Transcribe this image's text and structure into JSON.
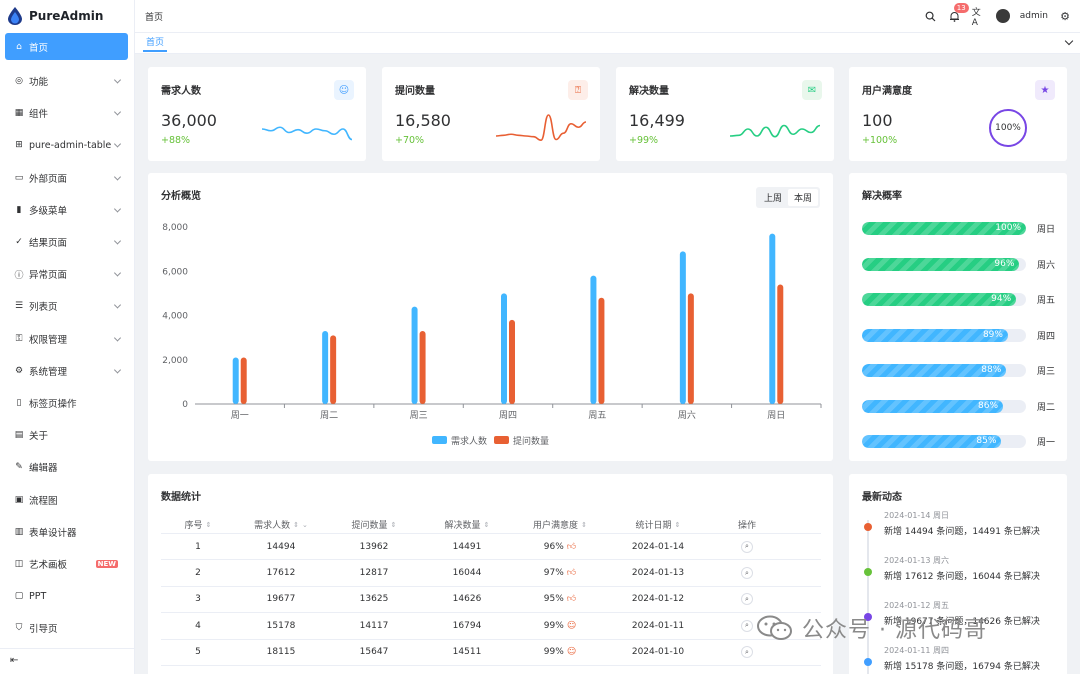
{
  "app": {
    "name": "PureAdmin"
  },
  "sidebar": {
    "items": [
      {
        "label": "首页",
        "icon": "home-icon",
        "glyph": "⌂",
        "active": true
      },
      {
        "label": "功能",
        "icon": "function-icon",
        "glyph": "◎",
        "arrow": true
      },
      {
        "label": "组件",
        "icon": "component-icon",
        "glyph": "▦",
        "arrow": true
      },
      {
        "label": "pure-admin-table",
        "icon": "table-icon",
        "glyph": "⊞",
        "arrow": true
      },
      {
        "label": "外部页面",
        "icon": "monitor-icon",
        "glyph": "▭",
        "arrow": true
      },
      {
        "label": "多级菜单",
        "icon": "bar-chart-icon",
        "glyph": "▮",
        "arrow": true
      },
      {
        "label": "结果页面",
        "icon": "check-circle-icon",
        "glyph": "✓",
        "arrow": true
      },
      {
        "label": "异常页面",
        "icon": "info-icon",
        "glyph": "ⓘ",
        "arrow": true
      },
      {
        "label": "列表页",
        "icon": "list-icon",
        "glyph": "☰",
        "arrow": true
      },
      {
        "label": "权限管理",
        "icon": "key-icon",
        "glyph": "⚿",
        "arrow": true
      },
      {
        "label": "系统管理",
        "icon": "settings-icon",
        "glyph": "⚙",
        "arrow": true
      },
      {
        "label": "标签页操作",
        "icon": "bookmark-icon",
        "glyph": "▯"
      },
      {
        "label": "关于",
        "icon": "document-icon",
        "glyph": "▤"
      },
      {
        "label": "编辑器",
        "icon": "edit-icon",
        "glyph": "✎"
      },
      {
        "label": "流程图",
        "icon": "flowchart-icon",
        "glyph": "▣"
      },
      {
        "label": "表单设计器",
        "icon": "form-icon",
        "glyph": "▥"
      },
      {
        "label": "艺术画板",
        "icon": "easel-icon",
        "glyph": "◫",
        "badge": "NEW"
      },
      {
        "label": "PPT",
        "icon": "ppt-icon",
        "glyph": "▢"
      },
      {
        "label": "引导页",
        "icon": "guide-icon",
        "glyph": "⛉"
      }
    ]
  },
  "header": {
    "breadcrumb": "首页",
    "notice_count": "13",
    "user": "admin"
  },
  "tabs": {
    "active": "首页"
  },
  "stats": [
    {
      "title": "需求人数",
      "value": "36,000",
      "pct": "+88%",
      "icon": "users-icon",
      "bg": "#eaf4ff",
      "fg": "#409eff",
      "color": "#41b6ff",
      "spark": [
        40,
        35,
        45,
        30,
        38,
        28,
        40,
        35,
        25,
        40,
        10
      ]
    },
    {
      "title": "提问数量",
      "value": "16,580",
      "pct": "+70%",
      "icon": "question-icon",
      "bg": "#fdeee9",
      "fg": "#e85f33",
      "color": "#e85f33",
      "spark": [
        20,
        22,
        25,
        22,
        20,
        18,
        8,
        80,
        10,
        28,
        55,
        45,
        60
      ]
    },
    {
      "title": "解决数量",
      "value": "16,499",
      "pct": "+99%",
      "icon": "message-icon",
      "bg": "#e9f7ec",
      "fg": "#26ce83",
      "color": "#26ce83",
      "spark": [
        20,
        22,
        40,
        20,
        45,
        18,
        50,
        25,
        40,
        30,
        50
      ]
    },
    {
      "title": "用户满意度",
      "value": "100",
      "pct": "+100%",
      "icon": "star-icon",
      "bg": "#f0eafc",
      "fg": "#7846e5",
      "color": "#7846e5",
      "ring": "100%"
    }
  ],
  "overview": {
    "title": "分析概览",
    "toggle": [
      "上周",
      "本周"
    ],
    "toggle_active": 1
  },
  "chart_data": {
    "type": "bar",
    "categories": [
      "周一",
      "周二",
      "周三",
      "周四",
      "周五",
      "周六",
      "周日"
    ],
    "series": [
      {
        "name": "需求人数",
        "color": "#41b6ff",
        "values": [
          2100,
          3300,
          4400,
          5000,
          5800,
          6900,
          7700
        ]
      },
      {
        "name": "提问数量",
        "color": "#e86033",
        "values": [
          2100,
          3100,
          3300,
          3800,
          4800,
          5000,
          5400
        ]
      }
    ],
    "yticks": [
      "0",
      "2,000",
      "4,000",
      "6,000",
      "8,000"
    ],
    "ylim": [
      0,
      8000
    ]
  },
  "solve_rate": {
    "title": "解决概率",
    "rows": [
      {
        "pct": 100,
        "label": "100%",
        "day": "周日",
        "color": "#26ce83"
      },
      {
        "pct": 96,
        "label": "96%",
        "day": "周六",
        "color": "#26ce83"
      },
      {
        "pct": 94,
        "label": "94%",
        "day": "周五",
        "color": "#26ce83"
      },
      {
        "pct": 89,
        "label": "89%",
        "day": "周四",
        "color": "#41b6ff"
      },
      {
        "pct": 88,
        "label": "88%",
        "day": "周三",
        "color": "#41b6ff"
      },
      {
        "pct": 86,
        "label": "86%",
        "day": "周二",
        "color": "#41b6ff"
      },
      {
        "pct": 85,
        "label": "85%",
        "day": "周一",
        "color": "#41b6ff"
      }
    ]
  },
  "table": {
    "title": "数据统计",
    "headers": [
      "序号",
      "需求人数",
      "提问数量",
      "解决数量",
      "用户满意度",
      "统计日期",
      "操作"
    ],
    "rows": [
      [
        "1",
        "14494",
        "13962",
        "14491",
        "96%",
        "2024-01-14"
      ],
      [
        "2",
        "17612",
        "12817",
        "16044",
        "97%",
        "2024-01-13"
      ],
      [
        "3",
        "19677",
        "13625",
        "14626",
        "95%",
        "2024-01-12"
      ],
      [
        "4",
        "15178",
        "14117",
        "16794",
        "99%",
        "2024-01-11"
      ],
      [
        "5",
        "18115",
        "15647",
        "14511",
        "99%",
        "2024-01-10"
      ]
    ]
  },
  "timeline": {
    "title": "最新动态",
    "items": [
      {
        "date": "2024-01-14 周日",
        "text": "新增 14494 条问题，14491 条已解决",
        "color": "#e86033"
      },
      {
        "date": "2024-01-13 周六",
        "text": "新增 17612 条问题，16044 条已解决",
        "color": "#67c23a"
      },
      {
        "date": "2024-01-12 周五",
        "text": "新增 19677 条问题，14626 条已解决",
        "color": "#7846e5"
      },
      {
        "date": "2024-01-11 周四",
        "text": "新增 15178 条问题，16794 条已解决",
        "color": "#409eff"
      }
    ]
  },
  "watermark": {
    "text": "公众号 · 源代码哥"
  }
}
